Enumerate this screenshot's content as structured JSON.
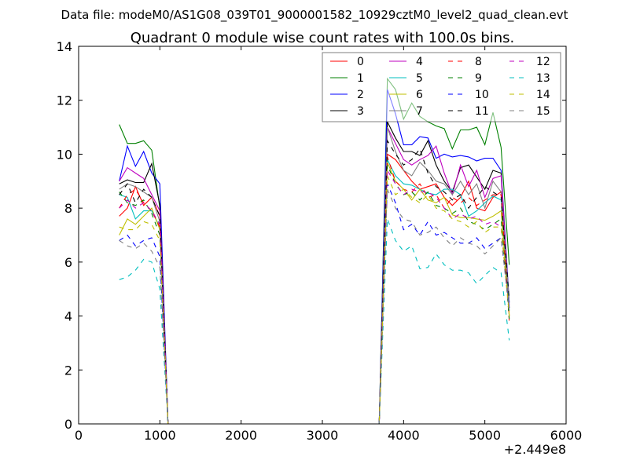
{
  "chart_data": {
    "type": "line",
    "suptitle": "Data file: modeM0/AS1G08_039T01_9000001582_10929cztM0_level2_quad_clean.evt",
    "title": "Quadrant 0 module wise count rates with 100.0s bins.",
    "xlabel": "",
    "ylabel": "",
    "x_offset_label": "+2.449e8",
    "xlim": [
      0,
      6000
    ],
    "ylim": [
      0,
      14
    ],
    "xticks": [
      0,
      1000,
      2000,
      3000,
      4000,
      5000,
      6000
    ],
    "yticks": [
      0,
      2,
      4,
      6,
      8,
      10,
      12,
      14
    ],
    "grid": false,
    "legend_placement": "top-right",
    "legend_columns": 4,
    "x": [
      500,
      600,
      700,
      800,
      900,
      1000,
      1100,
      1200,
      1300,
      1400,
      1500,
      1600,
      1700,
      1800,
      1900,
      2000,
      2100,
      2200,
      2300,
      2400,
      2500,
      2600,
      2700,
      2800,
      2900,
      3000,
      3100,
      3200,
      3300,
      3400,
      3500,
      3600,
      3700,
      3800,
      3900,
      4000,
      4100,
      4200,
      4300,
      4400,
      4500,
      4600,
      4700,
      4800,
      4900,
      5000,
      5100,
      5200,
      5300
    ],
    "series": [
      {
        "name": "0",
        "color": "#ff0000",
        "dashed": false,
        "values": [
          7.7,
          8.0,
          8.8,
          8.1,
          8.4,
          7.7,
          0,
          0,
          0,
          0,
          0,
          0,
          0,
          0,
          0,
          0,
          0,
          0,
          0,
          0,
          0,
          0,
          0,
          0,
          0,
          0,
          0,
          0,
          0,
          0,
          0,
          0,
          0,
          10.0,
          9.8,
          9.4,
          9.0,
          8.7,
          8.8,
          8.9,
          8.4,
          8.1,
          8.4,
          9.0,
          8.0,
          7.9,
          8.4,
          8.6,
          4.0
        ]
      },
      {
        "name": "1",
        "color": "#008000",
        "dashed": false,
        "values": [
          11.1,
          10.4,
          10.4,
          10.5,
          10.15,
          8.0,
          0,
          0,
          0,
          0,
          0,
          0,
          0,
          0,
          0,
          0,
          0,
          0,
          0,
          0,
          0,
          0,
          0,
          0,
          0,
          0,
          0,
          0,
          0,
          0,
          0,
          0,
          0,
          12.8,
          12.4,
          11.3,
          11.9,
          11.4,
          11.2,
          11.05,
          10.95,
          10.2,
          10.9,
          10.9,
          11.0,
          10.35,
          11.55,
          10.25,
          5.9
        ]
      },
      {
        "name": "2",
        "color": "#0000ff",
        "dashed": false,
        "values": [
          9.0,
          10.3,
          9.55,
          10.1,
          9.3,
          8.9,
          0,
          0,
          0,
          0,
          0,
          0,
          0,
          0,
          0,
          0,
          0,
          0,
          0,
          0,
          0,
          0,
          0,
          0,
          0,
          0,
          0,
          0,
          0,
          0,
          0,
          0,
          0,
          12.4,
          11.5,
          10.35,
          10.35,
          10.65,
          10.6,
          9.85,
          10.0,
          9.9,
          9.95,
          9.9,
          9.75,
          9.85,
          9.85,
          9.4,
          4.5
        ]
      },
      {
        "name": "3",
        "color": "#000000",
        "dashed": false,
        "values": [
          8.9,
          9.05,
          8.95,
          8.95,
          9.65,
          8.1,
          0,
          0,
          0,
          0,
          0,
          0,
          0,
          0,
          0,
          0,
          0,
          0,
          0,
          0,
          0,
          0,
          0,
          0,
          0,
          0,
          0,
          0,
          0,
          0,
          0,
          0,
          0,
          11.2,
          10.6,
          10.1,
          10.1,
          9.95,
          10.5,
          9.6,
          9.0,
          8.6,
          9.5,
          9.6,
          9.15,
          8.7,
          9.4,
          9.3,
          4.3
        ]
      },
      {
        "name": "4",
        "color": "#bf00bf",
        "dashed": false,
        "values": [
          9.0,
          9.5,
          9.3,
          9.1,
          8.5,
          7.9,
          0,
          0,
          0,
          0,
          0,
          0,
          0,
          0,
          0,
          0,
          0,
          0,
          0,
          0,
          0,
          0,
          0,
          0,
          0,
          0,
          0,
          0,
          0,
          0,
          0,
          0,
          0,
          11.0,
          10.4,
          9.8,
          9.6,
          9.8,
          9.95,
          10.3,
          9.3,
          8.5,
          9.6,
          8.8,
          9.4,
          8.4,
          9.1,
          9.2,
          4.4
        ]
      },
      {
        "name": "5",
        "color": "#00bfbf",
        "dashed": false,
        "values": [
          8.5,
          8.4,
          7.6,
          7.9,
          7.9,
          7.3,
          0,
          0,
          0,
          0,
          0,
          0,
          0,
          0,
          0,
          0,
          0,
          0,
          0,
          0,
          0,
          0,
          0,
          0,
          0,
          0,
          0,
          0,
          0,
          0,
          0,
          0,
          0,
          9.8,
          9.2,
          8.9,
          8.85,
          8.7,
          8.55,
          8.5,
          8.7,
          8.7,
          8.5,
          7.7,
          7.9,
          8.2,
          8.45,
          8.3,
          4.2
        ]
      },
      {
        "name": "6",
        "color": "#bfbf00",
        "dashed": false,
        "values": [
          7.0,
          7.6,
          7.4,
          7.7,
          8.0,
          7.2,
          0,
          0,
          0,
          0,
          0,
          0,
          0,
          0,
          0,
          0,
          0,
          0,
          0,
          0,
          0,
          0,
          0,
          0,
          0,
          0,
          0,
          0,
          0,
          0,
          0,
          0,
          0,
          9.7,
          9.0,
          8.7,
          8.3,
          8.7,
          8.3,
          8.2,
          8.4,
          7.75,
          7.65,
          7.65,
          7.6,
          7.55,
          7.7,
          7.9,
          4.0
        ]
      },
      {
        "name": "7",
        "color": "#808080",
        "dashed": false,
        "values": [
          8.7,
          8.9,
          8.8,
          8.6,
          8.4,
          7.5,
          0,
          0,
          0,
          0,
          0,
          0,
          0,
          0,
          0,
          0,
          0,
          0,
          0,
          0,
          0,
          0,
          0,
          0,
          0,
          0,
          0,
          0,
          0,
          0,
          0,
          0,
          0,
          11.0,
          10.1,
          9.4,
          9.2,
          9.7,
          9.4,
          9.0,
          8.9,
          8.5,
          9.0,
          8.5,
          8.9,
          8.0,
          9.0,
          8.6,
          4.5
        ]
      },
      {
        "name": "8",
        "color": "#ff0000",
        "dashed": true,
        "values": [
          8.0,
          8.5,
          8.7,
          8.2,
          7.9,
          7.3,
          0,
          0,
          0,
          0,
          0,
          0,
          0,
          0,
          0,
          0,
          0,
          0,
          0,
          0,
          0,
          0,
          0,
          0,
          0,
          0,
          0,
          0,
          0,
          0,
          0,
          0,
          0,
          9.9,
          9.0,
          8.7,
          8.6,
          8.9,
          8.4,
          8.5,
          8.0,
          8.4,
          8.2,
          8.4,
          8.1,
          8.3,
          8.5,
          8.5,
          3.8
        ]
      },
      {
        "name": "9",
        "color": "#008000",
        "dashed": true,
        "values": [
          8.6,
          8.2,
          8.1,
          8.3,
          7.8,
          7.0,
          0,
          0,
          0,
          0,
          0,
          0,
          0,
          0,
          0,
          0,
          0,
          0,
          0,
          0,
          0,
          0,
          0,
          0,
          0,
          0,
          0,
          0,
          0,
          0,
          0,
          0,
          0,
          9.6,
          8.9,
          8.5,
          8.6,
          8.3,
          8.6,
          8.1,
          8.0,
          7.8,
          8.0,
          7.5,
          7.4,
          7.2,
          7.4,
          7.6,
          3.9
        ]
      },
      {
        "name": "10",
        "color": "#0000ff",
        "dashed": true,
        "values": [
          6.8,
          7.0,
          6.6,
          6.8,
          6.9,
          6.2,
          0,
          0,
          0,
          0,
          0,
          0,
          0,
          0,
          0,
          0,
          0,
          0,
          0,
          0,
          0,
          0,
          0,
          0,
          0,
          0,
          0,
          0,
          0,
          0,
          0,
          0,
          0,
          8.9,
          8.2,
          7.2,
          7.4,
          7.0,
          7.5,
          7.0,
          7.1,
          6.9,
          6.7,
          6.7,
          6.9,
          6.5,
          6.7,
          6.9,
          4.3
        ]
      },
      {
        "name": "11",
        "color": "#000000",
        "dashed": true,
        "values": [
          8.5,
          8.9,
          8.2,
          8.7,
          8.4,
          7.7,
          0,
          0,
          0,
          0,
          0,
          0,
          0,
          0,
          0,
          0,
          0,
          0,
          0,
          0,
          0,
          0,
          0,
          0,
          0,
          0,
          0,
          0,
          0,
          0,
          0,
          0,
          0,
          10.5,
          10.0,
          9.6,
          9.8,
          10.2,
          9.3,
          8.8,
          8.6,
          8.3,
          8.5,
          8.0,
          8.4,
          8.8,
          8.6,
          8.4,
          4.6
        ]
      },
      {
        "name": "12",
        "color": "#bf00bf",
        "dashed": true,
        "values": [
          8.0,
          8.3,
          8.0,
          8.2,
          7.9,
          7.4,
          0,
          0,
          0,
          0,
          0,
          0,
          0,
          0,
          0,
          0,
          0,
          0,
          0,
          0,
          0,
          0,
          0,
          0,
          0,
          0,
          0,
          0,
          0,
          0,
          0,
          0,
          0,
          9.4,
          8.9,
          8.5,
          8.7,
          8.6,
          8.6,
          8.4,
          8.0,
          7.6,
          7.8,
          7.6,
          7.7,
          7.4,
          7.5,
          7.3,
          4.1
        ]
      },
      {
        "name": "13",
        "color": "#00bfbf",
        "dashed": true,
        "values": [
          5.35,
          5.45,
          5.7,
          6.1,
          6.0,
          5.0,
          0,
          0,
          0,
          0,
          0,
          0,
          0,
          0,
          0,
          0,
          0,
          0,
          0,
          0,
          0,
          0,
          0,
          0,
          0,
          0,
          0,
          0,
          0,
          0,
          0,
          0,
          0,
          7.6,
          6.8,
          6.4,
          6.6,
          5.75,
          5.8,
          6.3,
          5.9,
          5.7,
          5.7,
          5.6,
          5.2,
          5.5,
          5.8,
          5.6,
          3.1
        ]
      },
      {
        "name": "14",
        "color": "#bfbf00",
        "dashed": true,
        "values": [
          7.3,
          7.2,
          7.2,
          7.5,
          7.4,
          6.8,
          0,
          0,
          0,
          0,
          0,
          0,
          0,
          0,
          0,
          0,
          0,
          0,
          0,
          0,
          0,
          0,
          0,
          0,
          0,
          0,
          0,
          0,
          0,
          0,
          0,
          0,
          0,
          9.2,
          8.5,
          8.7,
          8.4,
          8.2,
          8.5,
          8.0,
          7.9,
          7.6,
          7.5,
          7.3,
          7.5,
          7.1,
          7.3,
          7.3,
          4.0
        ]
      },
      {
        "name": "15",
        "color": "#808080",
        "dashed": true,
        "values": [
          6.8,
          6.6,
          6.5,
          6.7,
          6.4,
          5.8,
          0,
          0,
          0,
          0,
          0,
          0,
          0,
          0,
          0,
          0,
          0,
          0,
          0,
          0,
          0,
          0,
          0,
          0,
          0,
          0,
          0,
          0,
          0,
          0,
          0,
          0,
          0,
          8.7,
          8.0,
          7.6,
          7.5,
          7.0,
          7.1,
          7.3,
          6.9,
          6.6,
          6.9,
          6.7,
          6.6,
          6.3,
          6.6,
          6.9,
          4.2
        ]
      }
    ]
  }
}
